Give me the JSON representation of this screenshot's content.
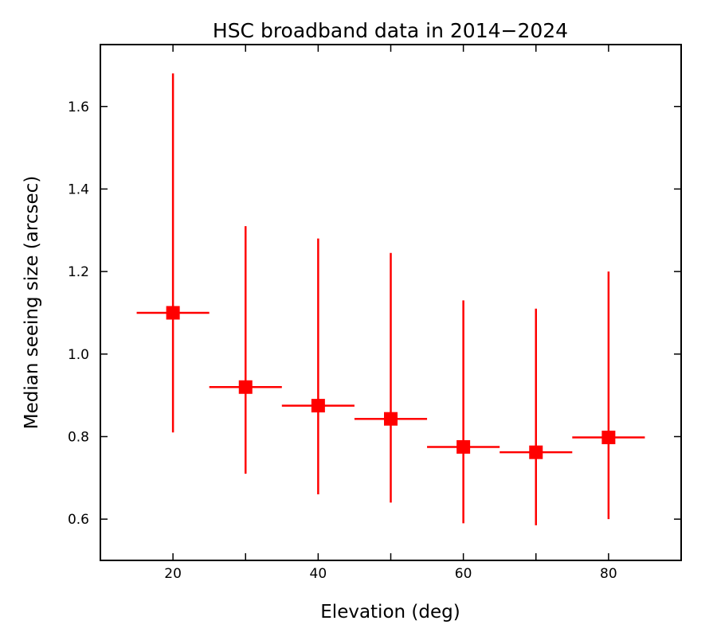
{
  "chart_data": {
    "type": "scatter",
    "title": "HSC broadband data in 2014−2024",
    "xlabel": "Elevation (deg)",
    "ylabel": "Median seeing size (arcsec)",
    "xlim": [
      10,
      90
    ],
    "ylim": [
      0.5,
      1.75
    ],
    "xticks": [
      20,
      40,
      60,
      80
    ],
    "xtick_labels": [
      "20",
      "40",
      "60",
      "80"
    ],
    "yticks": [
      0.6,
      0.8,
      1.0,
      1.2,
      1.4,
      1.6
    ],
    "ytick_labels": [
      "0.6",
      "0.8",
      "1.0",
      "1.2",
      "1.4",
      "1.6"
    ],
    "minor_xticks": [
      30,
      50,
      70
    ],
    "grid": false,
    "marker": "square",
    "series": [
      {
        "name": "Median seeing",
        "color": "#ff0000",
        "points": [
          {
            "x": 20,
            "y": 1.1,
            "x_lo": 15,
            "x_hi": 25,
            "y_lo": 0.81,
            "y_hi": 1.68
          },
          {
            "x": 30,
            "y": 0.92,
            "x_lo": 25,
            "x_hi": 35,
            "y_lo": 0.71,
            "y_hi": 1.31
          },
          {
            "x": 40,
            "y": 0.875,
            "x_lo": 35,
            "x_hi": 45,
            "y_lo": 0.66,
            "y_hi": 1.28
          },
          {
            "x": 50,
            "y": 0.843,
            "x_lo": 45,
            "x_hi": 55,
            "y_lo": 0.64,
            "y_hi": 1.245
          },
          {
            "x": 60,
            "y": 0.775,
            "x_lo": 55,
            "x_hi": 65,
            "y_lo": 0.59,
            "y_hi": 1.13
          },
          {
            "x": 70,
            "y": 0.762,
            "x_lo": 65,
            "x_hi": 75,
            "y_lo": 0.585,
            "y_hi": 1.11
          },
          {
            "x": 80,
            "y": 0.798,
            "x_lo": 75,
            "x_hi": 85,
            "y_lo": 0.6,
            "y_hi": 1.2
          }
        ]
      }
    ]
  }
}
